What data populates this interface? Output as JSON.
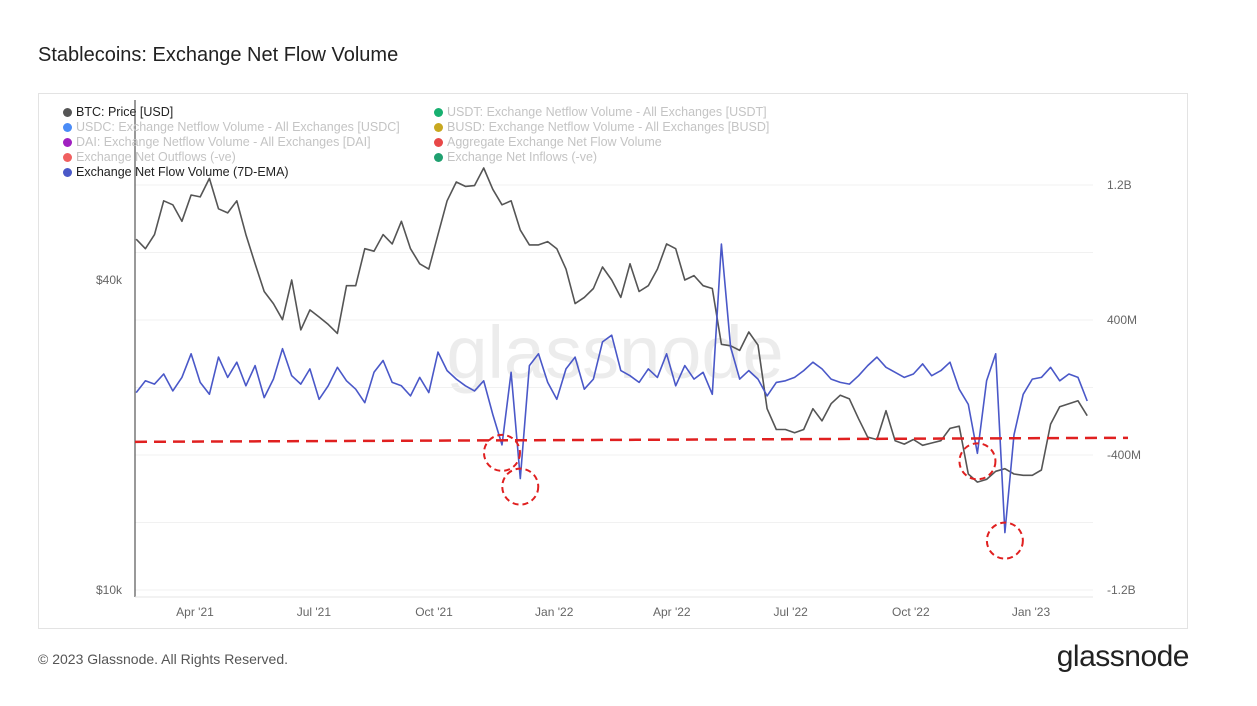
{
  "title": "Stablecoins: Exchange Net Flow Volume",
  "footer": "© 2023 Glassnode. All Rights Reserved.",
  "logo": "glassnode",
  "watermark": "glassnode",
  "legend": [
    {
      "label": "BTC: Price [USD]",
      "color": "#555555",
      "active": true
    },
    {
      "label": "USDC: Exchange Netflow Volume - All Exchanges [USDC]",
      "color": "#4a8cf7",
      "active": false
    },
    {
      "label": "DAI: Exchange Netflow Volume - All Exchanges [DAI]",
      "color": "#a020c0",
      "active": false
    },
    {
      "label": "Exchange Net Outflows (-ve)",
      "color": "#f06060",
      "active": false
    },
    {
      "label": "Exchange Net Flow Volume (7D-EMA)",
      "color": "#4a58c8",
      "active": true
    },
    {
      "label": "USDT: Exchange Netflow Volume - All Exchanges [USDT]",
      "color": "#17b070",
      "active": false
    },
    {
      "label": "BUSD: Exchange Netflow Volume - All Exchanges [BUSD]",
      "color": "#c8a820",
      "active": false
    },
    {
      "label": "Aggregate Exchange Net Flow Volume",
      "color": "#e84848",
      "active": false
    },
    {
      "label": "Exchange Net Inflows (-ve)",
      "color": "#20a070",
      "active": false
    }
  ],
  "chart_data": {
    "type": "line",
    "title": "Stablecoins: Exchange Net Flow Volume",
    "x_ticks": [
      "Apr '21",
      "Jul '21",
      "Oct '21",
      "Jan '22",
      "Apr '22",
      "Jul '22",
      "Oct '22",
      "Jan '23"
    ],
    "x_tick_dates": [
      "2021-04-01",
      "2021-07-01",
      "2021-10-01",
      "2022-01-01",
      "2022-04-01",
      "2022-07-01",
      "2022-10-01",
      "2023-01-01"
    ],
    "left_axis": {
      "scale": "log",
      "ticks": [
        "$10k",
        "$40k"
      ],
      "tick_values": [
        10000,
        40000
      ],
      "range": [
        9700,
        89500
      ]
    },
    "right_axis": {
      "scale": "linear",
      "ticks": [
        "1.2B",
        "400M",
        "-400M",
        "-1.2B"
      ],
      "tick_values": [
        1200,
        400,
        -400,
        -1200
      ],
      "unit": "M USD",
      "range": [
        -1240,
        1700
      ]
    },
    "x": [
      "2021-02-15",
      "2021-02-22",
      "2021-03-01",
      "2021-03-08",
      "2021-03-15",
      "2021-03-22",
      "2021-03-29",
      "2021-04-05",
      "2021-04-12",
      "2021-04-19",
      "2021-04-26",
      "2021-05-03",
      "2021-05-10",
      "2021-05-17",
      "2021-05-24",
      "2021-05-31",
      "2021-06-07",
      "2021-06-14",
      "2021-06-21",
      "2021-06-28",
      "2021-07-05",
      "2021-07-12",
      "2021-07-19",
      "2021-07-26",
      "2021-08-02",
      "2021-08-09",
      "2021-08-16",
      "2021-08-23",
      "2021-08-30",
      "2021-09-06",
      "2021-09-13",
      "2021-09-20",
      "2021-09-27",
      "2021-10-04",
      "2021-10-11",
      "2021-10-18",
      "2021-10-25",
      "2021-11-01",
      "2021-11-08",
      "2021-11-15",
      "2021-11-22",
      "2021-11-29",
      "2021-12-06",
      "2021-12-13",
      "2021-12-20",
      "2021-12-27",
      "2022-01-03",
      "2022-01-10",
      "2022-01-17",
      "2022-01-24",
      "2022-01-31",
      "2022-02-07",
      "2022-02-14",
      "2022-02-21",
      "2022-02-28",
      "2022-03-07",
      "2022-03-14",
      "2022-03-21",
      "2022-03-28",
      "2022-04-04",
      "2022-04-11",
      "2022-04-18",
      "2022-04-25",
      "2022-05-02",
      "2022-05-09",
      "2022-05-16",
      "2022-05-23",
      "2022-05-30",
      "2022-06-06",
      "2022-06-13",
      "2022-06-20",
      "2022-06-27",
      "2022-07-04",
      "2022-07-11",
      "2022-07-18",
      "2022-07-25",
      "2022-08-01",
      "2022-08-08",
      "2022-08-15",
      "2022-08-22",
      "2022-08-29",
      "2022-09-05",
      "2022-09-12",
      "2022-09-19",
      "2022-09-26",
      "2022-10-03",
      "2022-10-10",
      "2022-10-17",
      "2022-10-24",
      "2022-10-31",
      "2022-11-07",
      "2022-11-14",
      "2022-11-21",
      "2022-11-28",
      "2022-12-05",
      "2022-12-12",
      "2022-12-19",
      "2022-12-26",
      "2023-01-02",
      "2023-01-09",
      "2023-01-16",
      "2023-01-23",
      "2023-01-30",
      "2023-02-06",
      "2023-02-13"
    ],
    "series": [
      {
        "name": "BTC: Price [USD]",
        "axis": "left",
        "color": "#555555",
        "values": [
          48000,
          46000,
          49000,
          57000,
          56000,
          52000,
          58500,
          58000,
          63000,
          55000,
          54000,
          57000,
          49000,
          43000,
          38000,
          36000,
          33500,
          40000,
          32000,
          35000,
          33900,
          32800,
          31500,
          39000,
          39000,
          46000,
          45500,
          49000,
          47000,
          52000,
          46000,
          43000,
          42000,
          49000,
          57000,
          62000,
          60800,
          61000,
          66000,
          60000,
          56000,
          57000,
          50000,
          46800,
          46800,
          47500,
          46000,
          42000,
          36000,
          37000,
          38500,
          42400,
          40000,
          37000,
          43000,
          38000,
          39000,
          42000,
          47000,
          46000,
          40000,
          40800,
          39000,
          38500,
          30000,
          29800,
          29200,
          31700,
          29900,
          22500,
          20500,
          20500,
          20200,
          20500,
          22500,
          21300,
          23000,
          23900,
          23500,
          21500,
          19800,
          19600,
          22300,
          19500,
          19200,
          19600,
          19100,
          19300,
          19500,
          20600,
          20800,
          16800,
          16200,
          16400,
          17000,
          17200,
          16800,
          16700,
          16700,
          17100,
          21000,
          22700,
          23000,
          23300,
          21800
        ]
      },
      {
        "name": "Exchange Net Flow Volume (7D-EMA)",
        "axis": "right",
        "color": "#4a58c8",
        "values": [
          -30,
          40,
          20,
          80,
          -20,
          60,
          200,
          30,
          -40,
          180,
          60,
          150,
          10,
          130,
          -60,
          50,
          230,
          70,
          20,
          110,
          -70,
          10,
          120,
          40,
          -10,
          -90,
          90,
          160,
          30,
          10,
          -50,
          60,
          -30,
          210,
          100,
          50,
          10,
          -20,
          40,
          -160,
          -340,
          90,
          -540,
          130,
          200,
          30,
          -70,
          110,
          180,
          -10,
          50,
          270,
          310,
          100,
          70,
          30,
          110,
          60,
          200,
          10,
          130,
          50,
          90,
          -40,
          850,
          240,
          50,
          100,
          50,
          -50,
          30,
          40,
          60,
          100,
          150,
          110,
          50,
          30,
          20,
          70,
          130,
          180,
          120,
          90,
          60,
          80,
          140,
          70,
          100,
          150,
          -10,
          -100,
          -390,
          40,
          200,
          -860,
          -280,
          -40,
          50,
          60,
          120,
          40,
          80,
          60,
          -80
        ]
      }
    ],
    "annotations": {
      "threshold_line": {
        "axis": "right",
        "value": -310,
        "color": "#e02020",
        "style": "dashed"
      },
      "circled_dips": [
        "2021-11-22",
        "2021-12-06",
        "2022-11-21",
        "2022-12-12"
      ]
    },
    "grid": true,
    "legend_position": "top-left"
  }
}
